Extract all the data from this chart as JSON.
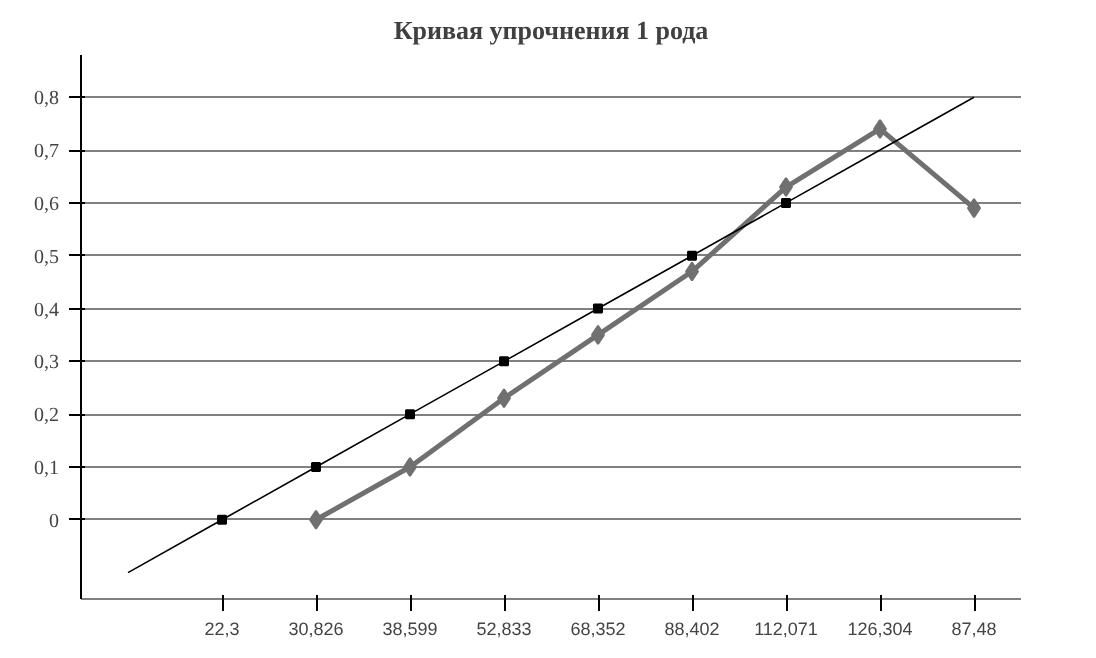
{
  "chart_data": {
    "type": "line",
    "title": "Кривая упрочнения 1 рода",
    "categories": [
      null,
      "22,3",
      "30,826",
      "38,599",
      "52,833",
      "68,352",
      "88,402",
      "112,071",
      "126,304",
      "87,48"
    ],
    "series": [
      {
        "color": "#707070",
        "marker": "diamond",
        "values": [
          null,
          null,
          0,
          0.1,
          0.23,
          0.35,
          0.47,
          0.63,
          0.74,
          0.59
        ]
      },
      {
        "type": "scatter",
        "color": "#000000",
        "marker": "square",
        "values": [
          null,
          0,
          0.1,
          0.2,
          0.3,
          0.4,
          0.5,
          0.6,
          null,
          null
        ]
      },
      {
        "type": "line",
        "color": "#000000",
        "marker": "none",
        "values": [
          -0.1,
          0,
          0.1,
          0.2,
          0.3,
          0.4,
          0.5,
          0.6,
          0.7,
          0.8
        ]
      }
    ],
    "ylim": [
      -0.15,
      0.88
    ],
    "yticks": [
      {
        "value": 0,
        "label": "0"
      },
      {
        "value": 0.1,
        "label": "0,1"
      },
      {
        "value": 0.2,
        "label": "0,2"
      },
      {
        "value": 0.3,
        "label": "0,3"
      },
      {
        "value": 0.4,
        "label": "0,4"
      },
      {
        "value": 0.5,
        "label": "0,5"
      },
      {
        "value": 0.6,
        "label": "0,6"
      },
      {
        "value": 0.7,
        "label": "0,7"
      },
      {
        "value": 0.8,
        "label": "0,8"
      }
    ],
    "grid": "y"
  }
}
